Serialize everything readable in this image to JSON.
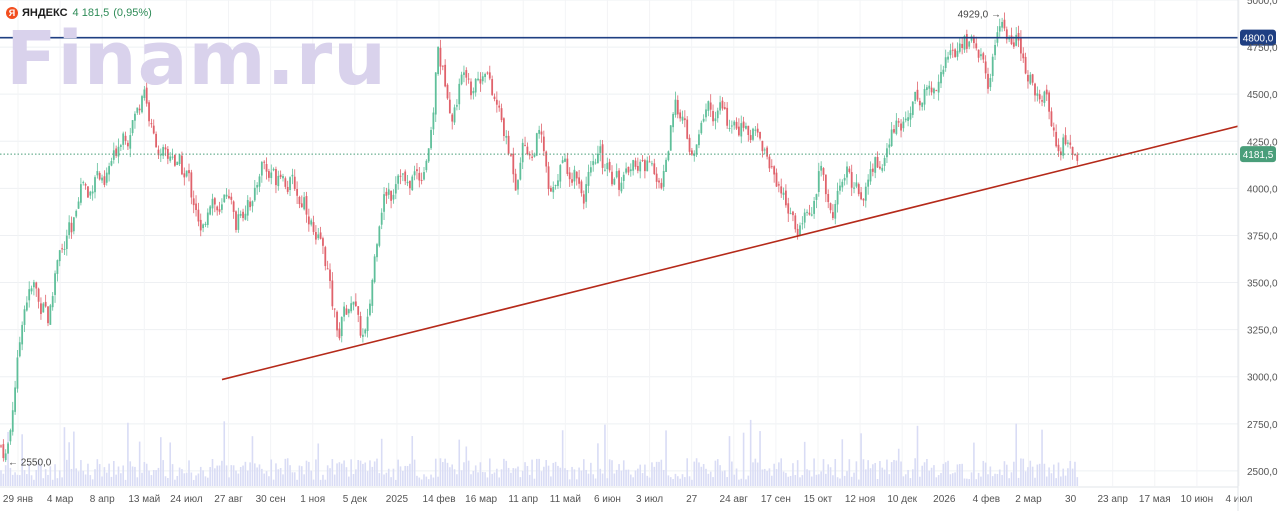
{
  "header": {
    "logo_letter": "Я",
    "ticker": "ЯНДЕКС",
    "price": "4 181,5",
    "change": "(0,95%)"
  },
  "watermark": "Finam.ru",
  "colors": {
    "up": "#5fbf9a",
    "down": "#e0626b",
    "resistance": "#1f3f82",
    "trend": "#b52a1a",
    "last_price": "#4a9e7a",
    "volume": "#d9dcf5"
  },
  "chart_data": {
    "type": "candlestick",
    "ylim": [
      2420,
      5000
    ],
    "y_ticks": [
      {
        "value": 2500,
        "label": "2500,0"
      },
      {
        "value": 2750,
        "label": "2750,0"
      },
      {
        "value": 3000,
        "label": "3000,0"
      },
      {
        "value": 3250,
        "label": "3250,0"
      },
      {
        "value": 3500,
        "label": "3500,0"
      },
      {
        "value": 3750,
        "label": "3750,0"
      },
      {
        "value": 4000,
        "label": "4000,0"
      },
      {
        "value": 4250,
        "label": "4250,0"
      },
      {
        "value": 4500,
        "label": "4500,0"
      },
      {
        "value": 4750,
        "label": "4750,0"
      },
      {
        "value": 5000,
        "label": "5000,0"
      }
    ],
    "x_ticks": [
      "29 янв",
      "4 мар",
      "8 апр",
      "13 май",
      "24 июл",
      "27 авг",
      "30 сен",
      "1 ноя",
      "5 дек",
      "2025",
      "14 фев",
      "16 мар",
      "11 апр",
      "11 май",
      "6 июн",
      "3 июл",
      "27",
      "24 авг",
      "17 сен",
      "15 окт",
      "12 ноя",
      "10 дек",
      "2026",
      "4 фев",
      "2 мар",
      "30",
      "23 апр",
      "17 мая",
      "10 июн",
      "4 июл"
    ],
    "price_path": [
      [
        0,
        2650
      ],
      [
        3,
        2600
      ],
      [
        6,
        2580
      ],
      [
        10,
        2700
      ],
      [
        14,
        2900
      ],
      [
        18,
        3100
      ],
      [
        22,
        3300
      ],
      [
        26,
        3400
      ],
      [
        30,
        3450
      ],
      [
        35,
        3500
      ],
      [
        40,
        3350
      ],
      [
        44,
        3420
      ],
      [
        48,
        3300
      ],
      [
        52,
        3400
      ],
      [
        56,
        3600
      ],
      [
        60,
        3700
      ],
      [
        64,
        3650
      ],
      [
        68,
        3800
      ],
      [
        72,
        3750
      ],
      [
        76,
        3900
      ],
      [
        80,
        4000
      ],
      [
        84,
        4050
      ],
      [
        88,
        3950
      ],
      [
        92,
        4000
      ],
      [
        96,
        4100
      ],
      [
        100,
        4050
      ],
      [
        104,
        4000
      ],
      [
        108,
        4100
      ],
      [
        112,
        4150
      ],
      [
        116,
        4200
      ],
      [
        120,
        4250
      ],
      [
        124,
        4300
      ],
      [
        128,
        4250
      ],
      [
        132,
        4350
      ],
      [
        136,
        4400
      ],
      [
        140,
        4450
      ],
      [
        144,
        4550
      ],
      [
        148,
        4400
      ],
      [
        152,
        4300
      ],
      [
        156,
        4250
      ],
      [
        160,
        4150
      ],
      [
        164,
        4200
      ],
      [
        168,
        4150
      ],
      [
        172,
        4200
      ],
      [
        176,
        4100
      ],
      [
        180,
        4150
      ],
      [
        184,
        4050
      ],
      [
        188,
        4100
      ],
      [
        192,
        3950
      ],
      [
        196,
        3900
      ],
      [
        200,
        3750
      ],
      [
        204,
        3800
      ],
      [
        208,
        3900
      ],
      [
        212,
        3950
      ],
      [
        216,
        3900
      ],
      [
        220,
        3850
      ],
      [
        224,
        3950
      ],
      [
        228,
        4000
      ],
      [
        232,
        3900
      ],
      [
        236,
        3800
      ],
      [
        240,
        3900
      ],
      [
        244,
        3850
      ],
      [
        248,
        3950
      ],
      [
        252,
        3900
      ],
      [
        256,
        4000
      ],
      [
        260,
        4100
      ],
      [
        264,
        4150
      ],
      [
        268,
        4050
      ],
      [
        272,
        4100
      ],
      [
        276,
        4050
      ],
      [
        280,
        4100
      ],
      [
        284,
        4050
      ],
      [
        288,
        4000
      ],
      [
        292,
        4050
      ],
      [
        296,
        4000
      ],
      [
        300,
        3900
      ],
      [
        304,
        3950
      ],
      [
        308,
        3850
      ],
      [
        312,
        3800
      ],
      [
        316,
        3700
      ],
      [
        320,
        3750
      ],
      [
        324,
        3650
      ],
      [
        328,
        3550
      ],
      [
        332,
        3400
      ],
      [
        336,
        3300
      ],
      [
        340,
        3200
      ],
      [
        344,
        3400
      ],
      [
        348,
        3300
      ],
      [
        352,
        3450
      ],
      [
        356,
        3350
      ],
      [
        360,
        3250
      ],
      [
        364,
        3200
      ],
      [
        368,
        3300
      ],
      [
        372,
        3500
      ],
      [
        376,
        3700
      ],
      [
        380,
        3850
      ],
      [
        384,
        3950
      ],
      [
        388,
        4000
      ],
      [
        392,
        3950
      ],
      [
        396,
        4050
      ],
      [
        400,
        4100
      ],
      [
        404,
        4050
      ],
      [
        408,
        4000
      ],
      [
        412,
        4050
      ],
      [
        416,
        4100
      ],
      [
        420,
        4050
      ],
      [
        424,
        4100
      ],
      [
        428,
        4200
      ],
      [
        432,
        4300
      ],
      [
        435,
        4550
      ],
      [
        438,
        4750
      ],
      [
        441,
        4650
      ],
      [
        444,
        4600
      ],
      [
        448,
        4500
      ],
      [
        452,
        4350
      ],
      [
        456,
        4450
      ],
      [
        460,
        4550
      ],
      [
        464,
        4650
      ],
      [
        468,
        4600
      ],
      [
        472,
        4500
      ],
      [
        476,
        4600
      ],
      [
        480,
        4550
      ],
      [
        484,
        4650
      ],
      [
        488,
        4600
      ],
      [
        492,
        4500
      ],
      [
        496,
        4450
      ],
      [
        500,
        4400
      ],
      [
        504,
        4300
      ],
      [
        508,
        4200
      ],
      [
        512,
        4150
      ],
      [
        516,
        4000
      ],
      [
        520,
        4150
      ],
      [
        524,
        4250
      ],
      [
        528,
        4200
      ],
      [
        532,
        4150
      ],
      [
        536,
        4250
      ],
      [
        540,
        4300
      ],
      [
        544,
        4200
      ],
      [
        548,
        4000
      ],
      [
        552,
        3950
      ],
      [
        556,
        4050
      ],
      [
        560,
        4100
      ],
      [
        564,
        4150
      ],
      [
        568,
        4100
      ],
      [
        572,
        4050
      ],
      [
        576,
        4100
      ],
      [
        580,
        4000
      ],
      [
        584,
        3950
      ],
      [
        588,
        4050
      ],
      [
        592,
        4100
      ],
      [
        596,
        4150
      ],
      [
        600,
        4200
      ],
      [
        604,
        4100
      ],
      [
        608,
        4150
      ],
      [
        612,
        4050
      ],
      [
        616,
        4100
      ],
      [
        620,
        4000
      ],
      [
        624,
        4050
      ],
      [
        628,
        4100
      ],
      [
        632,
        4150
      ],
      [
        636,
        4100
      ],
      [
        640,
        4150
      ],
      [
        644,
        4100
      ],
      [
        648,
        4200
      ],
      [
        652,
        4100
      ],
      [
        656,
        4050
      ],
      [
        660,
        4000
      ],
      [
        664,
        4100
      ],
      [
        668,
        4200
      ],
      [
        672,
        4350
      ],
      [
        676,
        4450
      ],
      [
        680,
        4400
      ],
      [
        684,
        4350
      ],
      [
        688,
        4250
      ],
      [
        692,
        4150
      ],
      [
        696,
        4200
      ],
      [
        700,
        4300
      ],
      [
        704,
        4400
      ],
      [
        708,
        4450
      ],
      [
        712,
        4400
      ],
      [
        716,
        4350
      ],
      [
        720,
        4450
      ],
      [
        724,
        4400
      ],
      [
        728,
        4350
      ],
      [
        732,
        4300
      ],
      [
        736,
        4350
      ],
      [
        740,
        4300
      ],
      [
        744,
        4350
      ],
      [
        748,
        4250
      ],
      [
        752,
        4300
      ],
      [
        756,
        4350
      ],
      [
        760,
        4250
      ],
      [
        764,
        4200
      ],
      [
        768,
        4150
      ],
      [
        772,
        4100
      ],
      [
        776,
        4050
      ],
      [
        780,
        4000
      ],
      [
        784,
        3950
      ],
      [
        788,
        3900
      ],
      [
        792,
        3850
      ],
      [
        796,
        3750
      ],
      [
        800,
        3800
      ],
      [
        804,
        3850
      ],
      [
        808,
        3900
      ],
      [
        812,
        3850
      ],
      [
        816,
        3950
      ],
      [
        820,
        4150
      ],
      [
        824,
        4050
      ],
      [
        828,
        3900
      ],
      [
        832,
        3850
      ],
      [
        836,
        3950
      ],
      [
        840,
        4000
      ],
      [
        844,
        4050
      ],
      [
        848,
        4100
      ],
      [
        852,
        4000
      ],
      [
        856,
        4050
      ],
      [
        860,
        3950
      ],
      [
        864,
        3950
      ],
      [
        868,
        4050
      ],
      [
        872,
        4100
      ],
      [
        876,
        4150
      ],
      [
        880,
        4100
      ],
      [
        884,
        4150
      ],
      [
        888,
        4200
      ],
      [
        892,
        4300
      ],
      [
        896,
        4350
      ],
      [
        900,
        4300
      ],
      [
        904,
        4350
      ],
      [
        908,
        4400
      ],
      [
        912,
        4450
      ],
      [
        916,
        4500
      ],
      [
        920,
        4450
      ],
      [
        924,
        4500
      ],
      [
        928,
        4550
      ],
      [
        932,
        4500
      ],
      [
        936,
        4550
      ],
      [
        940,
        4600
      ],
      [
        944,
        4650
      ],
      [
        948,
        4700
      ],
      [
        952,
        4750
      ],
      [
        956,
        4700
      ],
      [
        960,
        4750
      ],
      [
        964,
        4800
      ],
      [
        968,
        4750
      ],
      [
        972,
        4800
      ],
      [
        976,
        4750
      ],
      [
        980,
        4700
      ],
      [
        984,
        4650
      ],
      [
        988,
        4550
      ],
      [
        992,
        4650
      ],
      [
        996,
        4800
      ],
      [
        1000,
        4900
      ],
      [
        1004,
        4850
      ],
      [
        1008,
        4800
      ],
      [
        1012,
        4750
      ],
      [
        1016,
        4800
      ],
      [
        1020,
        4750
      ],
      [
        1024,
        4650
      ],
      [
        1028,
        4550
      ],
      [
        1032,
        4600
      ],
      [
        1036,
        4500
      ],
      [
        1040,
        4450
      ],
      [
        1044,
        4500
      ],
      [
        1048,
        4450
      ],
      [
        1052,
        4350
      ],
      [
        1056,
        4250
      ],
      [
        1060,
        4200
      ],
      [
        1064,
        4250
      ],
      [
        1068,
        4250
      ],
      [
        1072,
        4200
      ],
      [
        1076,
        4150
      ],
      [
        1079,
        4181.5
      ]
    ],
    "resistance_level": 4800,
    "resistance_label": "4800,0",
    "last_price": 4181.5,
    "last_price_label": "4181,5",
    "max_marker": {
      "value": 4929,
      "label": "4929,0 →"
    },
    "min_marker": {
      "value": 2550,
      "label": "← 2550,0"
    },
    "trendline": {
      "from_price": 2985,
      "to_price": 4330
    }
  }
}
